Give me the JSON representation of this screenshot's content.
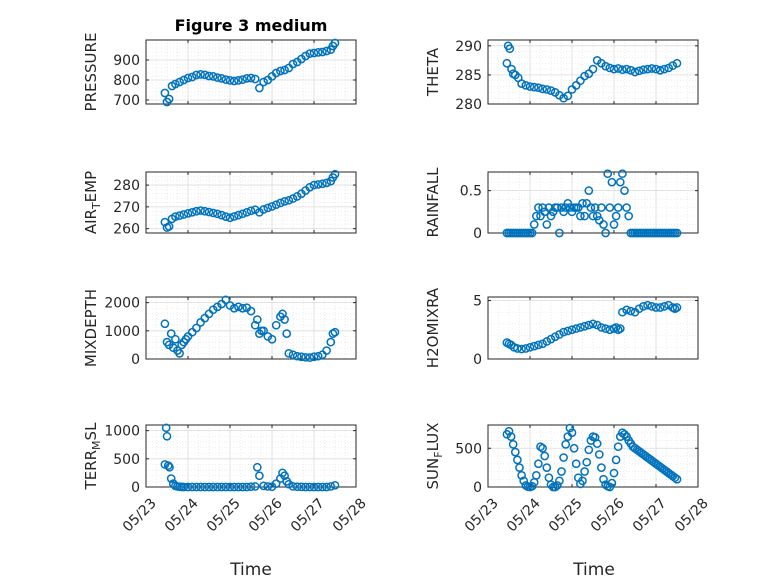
{
  "figure": {
    "title": "Figure 3 medium",
    "marker_color": "#0072BD",
    "xlabel": "Time"
  },
  "chart_data": [
    {
      "type": "scatter",
      "marker": "circle",
      "ylabel": "PRESSURE",
      "ylabel_sub": "",
      "ylabel_suffix": "",
      "ylim": [
        680,
        1000
      ],
      "yticks": [
        700,
        800,
        900
      ],
      "xlim": [
        0,
        5
      ],
      "xticks": [
        0,
        1,
        2,
        3,
        4,
        5
      ],
      "xticklabels": [
        "05/23",
        "05/24",
        "05/25",
        "05/26",
        "05/27",
        "05/28"
      ],
      "show_xticklabels": false,
      "x": [
        0.45,
        0.5,
        0.55,
        0.62,
        0.7,
        0.8,
        0.9,
        1.0,
        1.1,
        1.2,
        1.3,
        1.4,
        1.5,
        1.6,
        1.7,
        1.8,
        1.9,
        2.0,
        2.1,
        2.2,
        2.3,
        2.4,
        2.5,
        2.6,
        2.7,
        2.8,
        2.9,
        3.0,
        3.1,
        3.2,
        3.3,
        3.4,
        3.5,
        3.6,
        3.7,
        3.8,
        3.9,
        4.0,
        4.1,
        4.2,
        4.3,
        4.4,
        4.45,
        4.5
      ],
      "y": [
        735,
        690,
        705,
        770,
        780,
        790,
        800,
        810,
        815,
        825,
        828,
        826,
        820,
        818,
        812,
        808,
        802,
        798,
        795,
        798,
        802,
        808,
        810,
        805,
        760,
        790,
        800,
        818,
        835,
        845,
        850,
        860,
        880,
        890,
        905,
        920,
        932,
        935,
        938,
        940,
        945,
        952,
        970,
        985
      ]
    },
    {
      "type": "scatter",
      "marker": "circle",
      "ylabel": "THETA",
      "ylabel_sub": "",
      "ylabel_suffix": "",
      "ylim": [
        280,
        291
      ],
      "yticks": [
        280,
        285,
        290
      ],
      "xlim": [
        0,
        5
      ],
      "xticks": [
        0,
        1,
        2,
        3,
        4,
        5
      ],
      "xticklabels": [
        "05/23",
        "05/24",
        "05/25",
        "05/26",
        "05/27",
        "05/28"
      ],
      "show_xticklabels": false,
      "x": [
        0.45,
        0.48,
        0.52,
        0.56,
        0.6,
        0.65,
        0.72,
        0.8,
        0.9,
        1.0,
        1.1,
        1.2,
        1.3,
        1.4,
        1.5,
        1.6,
        1.7,
        1.8,
        1.9,
        2.0,
        2.1,
        2.2,
        2.3,
        2.4,
        2.5,
        2.6,
        2.7,
        2.8,
        2.9,
        3.0,
        3.1,
        3.2,
        3.3,
        3.4,
        3.5,
        3.6,
        3.7,
        3.8,
        3.9,
        4.0,
        4.1,
        4.2,
        4.3,
        4.4,
        4.5
      ],
      "y": [
        287,
        290,
        289.5,
        286,
        285.2,
        285,
        284.5,
        283.5,
        283.2,
        283,
        282.9,
        282.8,
        282.6,
        282.5,
        282.3,
        282.0,
        281.5,
        281.0,
        281.4,
        282.5,
        283.2,
        284,
        284.8,
        285.2,
        286,
        287.5,
        287,
        286.5,
        286.2,
        286,
        286.1,
        285.9,
        286,
        285.8,
        285.5,
        285.7,
        285.9,
        286,
        286.1,
        286.0,
        285.8,
        286.0,
        286.2,
        286.6,
        287
      ]
    },
    {
      "type": "scatter",
      "marker": "circle",
      "ylabel": "AIR",
      "ylabel_sub": "T",
      "ylabel_suffix": "EMP",
      "ylim": [
        258,
        286
      ],
      "yticks": [
        260,
        270,
        280
      ],
      "xlim": [
        0,
        5
      ],
      "xticks": [
        0,
        1,
        2,
        3,
        4,
        5
      ],
      "xticklabels": [
        "05/23",
        "05/24",
        "05/25",
        "05/26",
        "05/27",
        "05/28"
      ],
      "show_xticklabels": false,
      "x": [
        0.45,
        0.5,
        0.55,
        0.62,
        0.7,
        0.8,
        0.9,
        1.0,
        1.1,
        1.2,
        1.3,
        1.4,
        1.5,
        1.6,
        1.7,
        1.8,
        1.9,
        2.0,
        2.1,
        2.2,
        2.3,
        2.4,
        2.5,
        2.6,
        2.7,
        2.8,
        2.9,
        3.0,
        3.1,
        3.2,
        3.3,
        3.4,
        3.5,
        3.6,
        3.7,
        3.8,
        3.9,
        4.0,
        4.1,
        4.2,
        4.3,
        4.4,
        4.45,
        4.5
      ],
      "y": [
        263,
        260.5,
        261,
        264.5,
        265.5,
        266,
        266.5,
        267,
        267.5,
        268,
        268.3,
        268,
        267.6,
        267.2,
        266.8,
        266.2,
        265.5,
        265.0,
        265.6,
        266.2,
        266.8,
        267.5,
        268.2,
        268.7,
        267.5,
        268.8,
        269.5,
        270.2,
        271,
        271.8,
        272.5,
        273,
        273.8,
        274.8,
        276,
        277.5,
        279,
        280,
        280.3,
        280.6,
        281,
        281.8,
        283.5,
        285
      ]
    },
    {
      "type": "scatter",
      "marker": "circle",
      "ylabel": "RAINFALL",
      "ylabel_sub": "",
      "ylabel_suffix": "",
      "ylim": [
        0,
        0.72
      ],
      "yticks": [
        0,
        0.5
      ],
      "xlim": [
        0,
        5
      ],
      "xticks": [
        0,
        1,
        2,
        3,
        4,
        5
      ],
      "xticklabels": [
        "05/23",
        "05/24",
        "05/25",
        "05/26",
        "05/27",
        "05/28"
      ],
      "show_xticklabels": false,
      "x": [
        0.45,
        0.5,
        0.55,
        0.6,
        0.65,
        0.7,
        0.75,
        0.8,
        0.85,
        0.9,
        0.95,
        1.0,
        1.05,
        1.1,
        1.15,
        1.2,
        1.25,
        1.3,
        1.35,
        1.4,
        1.45,
        1.5,
        1.55,
        1.6,
        1.65,
        1.7,
        1.75,
        1.8,
        1.85,
        1.9,
        1.95,
        2.0,
        2.05,
        2.1,
        2.15,
        2.2,
        2.25,
        2.3,
        2.35,
        2.4,
        2.45,
        2.5,
        2.55,
        2.6,
        2.65,
        2.7,
        2.75,
        2.8,
        2.85,
        2.9,
        2.95,
        3.0,
        3.05,
        3.1,
        3.15,
        3.2,
        3.25,
        3.3,
        3.35,
        3.4,
        3.45,
        3.5,
        3.55,
        3.6,
        3.65,
        3.7,
        3.75,
        3.8,
        3.85,
        3.9,
        3.95,
        4.0,
        4.05,
        4.1,
        4.15,
        4.2,
        4.25,
        4.3,
        4.35,
        4.4,
        4.45,
        4.5
      ],
      "y": [
        0,
        0,
        0,
        0,
        0,
        0,
        0,
        0,
        0,
        0,
        0,
        0,
        0,
        0.1,
        0.2,
        0.3,
        0.2,
        0.3,
        0.25,
        0.1,
        0.3,
        0.2,
        0.25,
        0.3,
        0.3,
        0,
        0.3,
        0.25,
        0.3,
        0.35,
        0.3,
        0.25,
        0.3,
        0.3,
        0.3,
        0.2,
        0.35,
        0.2,
        0.35,
        0.5,
        0.3,
        0.2,
        0.3,
        0.2,
        0.15,
        0.3,
        0.1,
        0,
        0.7,
        0.3,
        0.6,
        0.1,
        0.2,
        0.3,
        0.6,
        0.7,
        0.5,
        0.3,
        0.2,
        0,
        0,
        0,
        0,
        0,
        0,
        0,
        0,
        0,
        0,
        0,
        0,
        0,
        0,
        0,
        0,
        0,
        0,
        0,
        0,
        0,
        0,
        0
      ]
    },
    {
      "type": "scatter",
      "marker": "circle",
      "ylabel": "MIXDEPTH",
      "ylabel_sub": "",
      "ylabel_suffix": "",
      "ylim": [
        0,
        2200
      ],
      "yticks": [
        0,
        1000,
        2000
      ],
      "xlim": [
        0,
        5
      ],
      "xticks": [
        0,
        1,
        2,
        3,
        4,
        5
      ],
      "xticklabels": [
        "05/23",
        "05/24",
        "05/25",
        "05/26",
        "05/27",
        "05/28"
      ],
      "show_xticklabels": false,
      "x": [
        0.45,
        0.5,
        0.55,
        0.6,
        0.65,
        0.7,
        0.75,
        0.8,
        0.85,
        0.9,
        0.95,
        1.0,
        1.1,
        1.2,
        1.3,
        1.4,
        1.5,
        1.6,
        1.7,
        1.8,
        1.9,
        2.0,
        2.1,
        2.2,
        2.3,
        2.4,
        2.5,
        2.6,
        2.65,
        2.7,
        2.75,
        2.8,
        2.9,
        3.0,
        3.1,
        3.2,
        3.25,
        3.3,
        3.35,
        3.4,
        3.5,
        3.6,
        3.7,
        3.8,
        3.9,
        4.0,
        4.1,
        4.2,
        4.3,
        4.4,
        4.45,
        4.5
      ],
      "y": [
        1250,
        600,
        500,
        900,
        400,
        700,
        300,
        200,
        500,
        600,
        700,
        800,
        950,
        1100,
        1300,
        1450,
        1600,
        1750,
        1850,
        1950,
        2100,
        1900,
        1800,
        1850,
        1800,
        1820,
        1700,
        1200,
        1400,
        900,
        1000,
        1000,
        800,
        700,
        1200,
        1500,
        1600,
        1400,
        900,
        200,
        150,
        100,
        80,
        60,
        50,
        80,
        100,
        150,
        300,
        600,
        900,
        950
      ]
    },
    {
      "type": "scatter",
      "marker": "circle",
      "ylabel": "H2OMIXRA",
      "ylabel_sub": "",
      "ylabel_suffix": "",
      "ylim": [
        0,
        5.3
      ],
      "yticks": [
        0,
        5
      ],
      "xlim": [
        0,
        5
      ],
      "xticks": [
        0,
        1,
        2,
        3,
        4,
        5
      ],
      "xticklabels": [
        "05/23",
        "05/24",
        "05/25",
        "05/26",
        "05/27",
        "05/28"
      ],
      "show_xticklabels": false,
      "x": [
        0.45,
        0.5,
        0.55,
        0.62,
        0.7,
        0.8,
        0.9,
        1.0,
        1.1,
        1.2,
        1.3,
        1.4,
        1.5,
        1.6,
        1.7,
        1.8,
        1.9,
        2.0,
        2.1,
        2.2,
        2.3,
        2.4,
        2.5,
        2.6,
        2.7,
        2.8,
        2.9,
        3.0,
        3.05,
        3.1,
        3.15,
        3.2,
        3.3,
        3.4,
        3.5,
        3.6,
        3.7,
        3.8,
        3.9,
        4.0,
        4.1,
        4.2,
        4.3,
        4.4,
        4.45,
        4.5
      ],
      "y": [
        1.4,
        1.3,
        1.2,
        1.0,
        0.9,
        0.85,
        0.9,
        1.0,
        1.1,
        1.2,
        1.3,
        1.5,
        1.7,
        1.9,
        2.1,
        2.3,
        2.4,
        2.5,
        2.6,
        2.7,
        2.8,
        2.9,
        3.0,
        2.9,
        2.7,
        2.6,
        2.5,
        2.6,
        2.7,
        2.5,
        2.6,
        4.0,
        4.2,
        4.1,
        4.0,
        4.3,
        4.5,
        4.6,
        4.5,
        4.4,
        4.4,
        4.5,
        4.6,
        4.4,
        4.3,
        4.4
      ]
    },
    {
      "type": "scatter",
      "marker": "circle",
      "ylabel": "TERR",
      "ylabel_sub": "M",
      "ylabel_suffix": "SL",
      "ylim": [
        0,
        1100
      ],
      "yticks": [
        0,
        500,
        1000
      ],
      "xlim": [
        0,
        5
      ],
      "xticks": [
        0,
        1,
        2,
        3,
        4,
        5
      ],
      "xticklabels": [
        "05/23",
        "05/24",
        "05/25",
        "05/26",
        "05/27",
        "05/28"
      ],
      "show_xticklabels": true,
      "x": [
        0.45,
        0.48,
        0.5,
        0.53,
        0.56,
        0.6,
        0.65,
        0.7,
        0.75,
        0.8,
        0.85,
        0.9,
        1.0,
        1.1,
        1.2,
        1.3,
        1.4,
        1.5,
        1.6,
        1.7,
        1.8,
        1.9,
        2.0,
        2.1,
        2.2,
        2.3,
        2.4,
        2.5,
        2.6,
        2.65,
        2.7,
        2.8,
        2.9,
        3.0,
        3.1,
        3.2,
        3.25,
        3.3,
        3.35,
        3.4,
        3.5,
        3.6,
        3.7,
        3.8,
        3.9,
        4.0,
        4.1,
        4.2,
        4.3,
        4.4,
        4.5
      ],
      "y": [
        400,
        1050,
        900,
        380,
        350,
        150,
        60,
        20,
        10,
        5,
        2,
        0,
        0,
        0,
        0,
        0,
        0,
        0,
        0,
        0,
        0,
        0,
        0,
        0,
        0,
        0,
        0,
        5,
        10,
        350,
        200,
        20,
        10,
        5,
        60,
        150,
        250,
        200,
        100,
        50,
        10,
        5,
        2,
        0,
        0,
        0,
        0,
        0,
        0,
        10,
        30
      ]
    },
    {
      "type": "scatter",
      "marker": "circle",
      "ylabel": "SUN",
      "ylabel_sub": "F",
      "ylabel_suffix": "LUX",
      "ylim": [
        0,
        800
      ],
      "yticks": [
        0,
        500
      ],
      "xlim": [
        0,
        5
      ],
      "xticks": [
        0,
        1,
        2,
        3,
        4,
        5
      ],
      "xticklabels": [
        "05/23",
        "05/24",
        "05/25",
        "05/26",
        "05/27",
        "05/28"
      ],
      "show_xticklabels": true,
      "x": [
        0.45,
        0.5,
        0.55,
        0.6,
        0.65,
        0.7,
        0.75,
        0.8,
        0.85,
        0.9,
        0.95,
        1.0,
        1.05,
        1.1,
        1.15,
        1.2,
        1.25,
        1.3,
        1.35,
        1.4,
        1.45,
        1.5,
        1.55,
        1.6,
        1.65,
        1.7,
        1.75,
        1.8,
        1.85,
        1.9,
        1.95,
        2.0,
        2.05,
        2.1,
        2.15,
        2.2,
        2.25,
        2.3,
        2.35,
        2.4,
        2.45,
        2.5,
        2.55,
        2.6,
        2.65,
        2.7,
        2.75,
        2.8,
        2.85,
        2.9,
        2.95,
        3.0,
        3.05,
        3.1,
        3.15,
        3.2,
        3.25,
        3.3,
        3.35,
        3.4,
        3.45,
        3.5,
        3.55,
        3.6,
        3.65,
        3.7,
        3.75,
        3.8,
        3.85,
        3.9,
        3.95,
        4.0,
        4.05,
        4.1,
        4.15,
        4.2,
        4.25,
        4.3,
        4.35,
        4.4,
        4.45,
        4.5
      ],
      "y": [
        680,
        720,
        650,
        550,
        450,
        350,
        250,
        150,
        80,
        20,
        5,
        0,
        10,
        60,
        150,
        300,
        520,
        500,
        400,
        250,
        120,
        30,
        0,
        0,
        20,
        80,
        200,
        380,
        550,
        650,
        760,
        700,
        500,
        300,
        120,
        40,
        80,
        200,
        320,
        480,
        600,
        650,
        640,
        560,
        420,
        250,
        100,
        30,
        10,
        0,
        50,
        180,
        350,
        520,
        650,
        700,
        680,
        650,
        600,
        560,
        520,
        500,
        480,
        460,
        440,
        420,
        400,
        380,
        360,
        340,
        320,
        300,
        280,
        260,
        240,
        220,
        200,
        180,
        160,
        140,
        120,
        100
      ]
    }
  ]
}
